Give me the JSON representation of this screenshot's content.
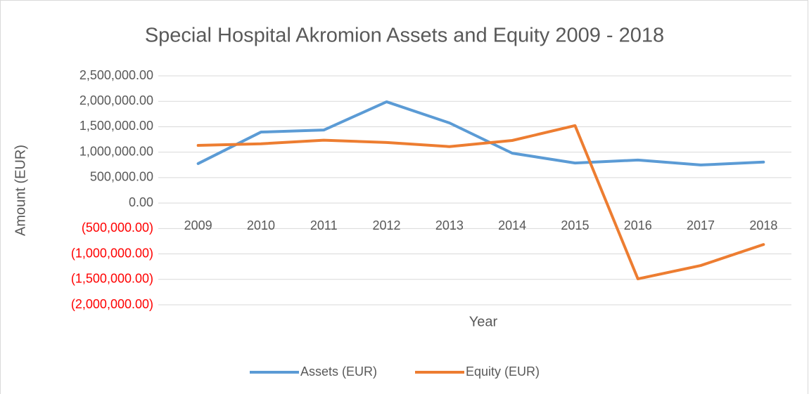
{
  "chart_data": {
    "type": "line",
    "title": "Special Hospital Akromion Assets and Equity 2009 - 2018",
    "x_label": "Year",
    "y_label": "Amount (EUR)",
    "categories": [
      "2009",
      "2010",
      "2011",
      "2012",
      "2013",
      "2014",
      "2015",
      "2016",
      "2017",
      "2018"
    ],
    "series": [
      {
        "name": "Assets (EUR)",
        "color": "#5b9bd5",
        "values": [
          775000,
          1395000,
          1435000,
          1990000,
          1575000,
          980000,
          787000,
          845000,
          748000,
          805000
        ]
      },
      {
        "name": "Equity (EUR)",
        "color": "#ed7d31",
        "values": [
          1133000,
          1165000,
          1235000,
          1190000,
          1110000,
          1230000,
          1522000,
          -1490000,
          -1228000,
          -815000
        ]
      }
    ],
    "ylim": [
      -2000000,
      2500000
    ],
    "yticks": [
      {
        "value": -2000000,
        "label": "(2,000,000.00)"
      },
      {
        "value": -1500000,
        "label": "(1,500,000.00)"
      },
      {
        "value": -1000000,
        "label": "(1,000,000.00)"
      },
      {
        "value": -500000,
        "label": "(500,000.00)"
      },
      {
        "value": 0,
        "label": "0.00"
      },
      {
        "value": 500000,
        "label": "500,000.00"
      },
      {
        "value": 1000000,
        "label": "1,000,000.00"
      },
      {
        "value": 1500000,
        "label": "1,500,000.00"
      },
      {
        "value": 2000000,
        "label": "2,000,000.00"
      },
      {
        "value": 2500000,
        "label": "2,500,000.00"
      }
    ],
    "negative_tick_color": "#ff0000",
    "grid": true,
    "legend": "bottom"
  }
}
